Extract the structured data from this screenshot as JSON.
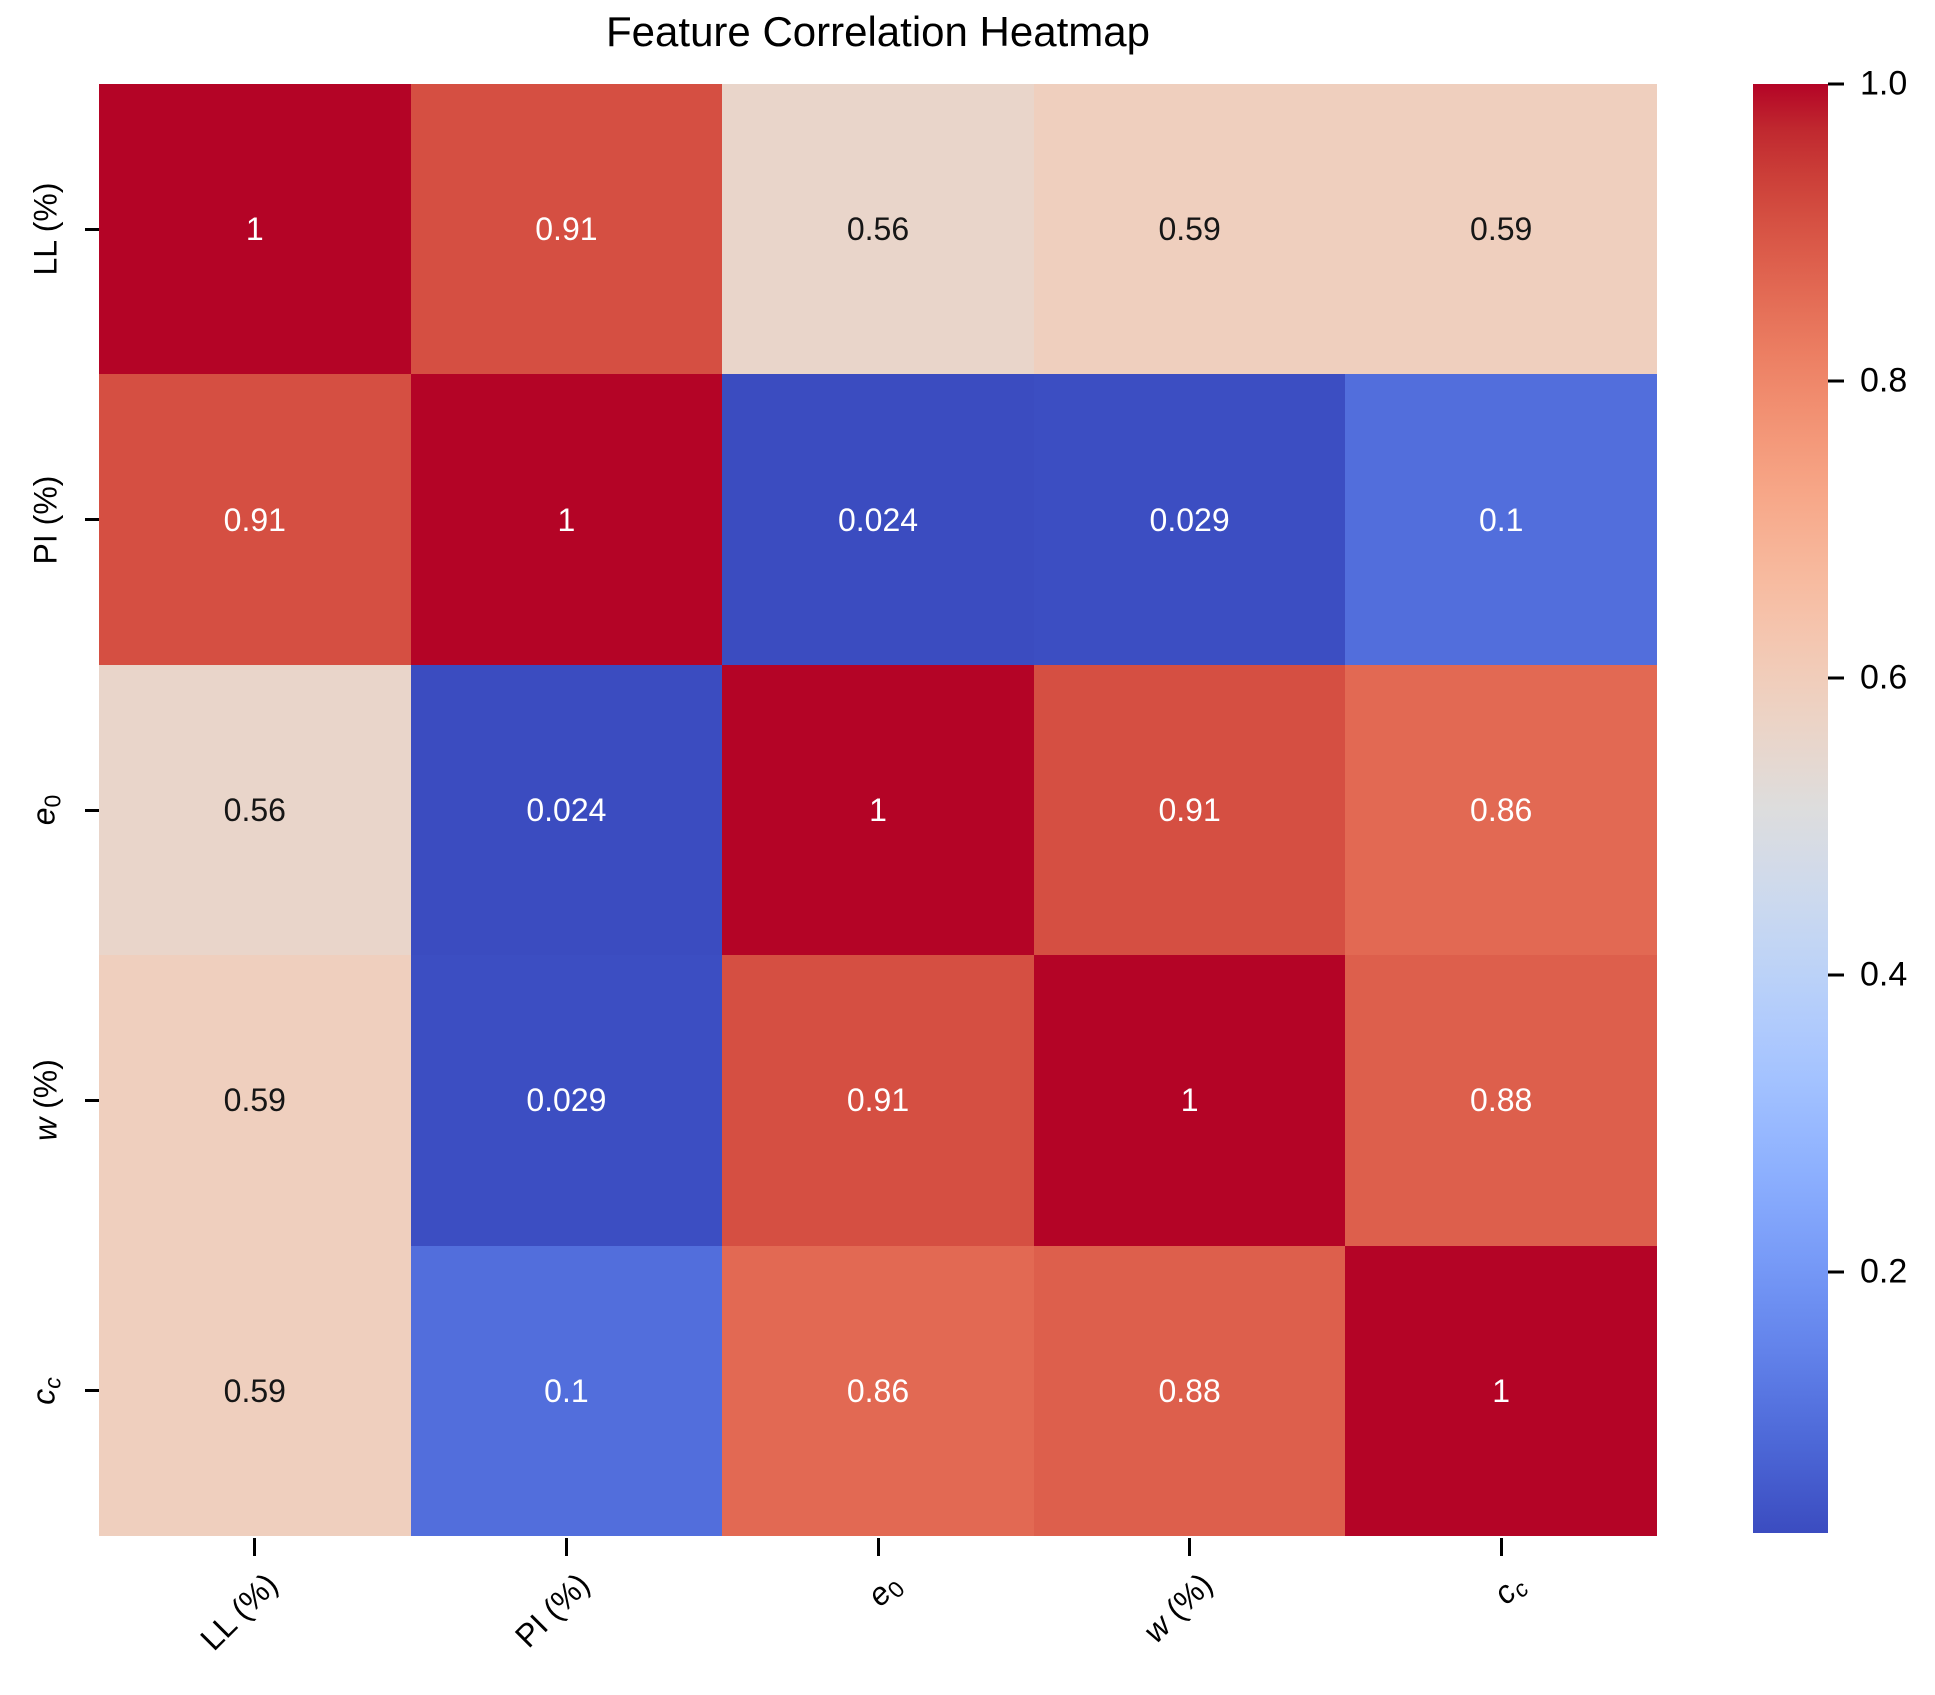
{
  "title": "Feature Correlation Heatmap",
  "chart_data": {
    "type": "heatmap",
    "axis_labels": [
      [
        {
          "text": "LL (%)"
        }
      ],
      [
        {
          "text": "PI (%)"
        }
      ],
      [
        {
          "text": "e",
          "italic": true
        },
        {
          "text": "0",
          "sub": true
        }
      ],
      [
        {
          "text": "w",
          "italic": true
        },
        {
          "text": " (%)"
        }
      ],
      [
        {
          "text": "c",
          "italic": true
        },
        {
          "text": "c",
          "sub": true,
          "italic": true
        }
      ]
    ],
    "label_names": [
      "LL (%)",
      "PI (%)",
      "e0",
      "w (%)",
      "cc"
    ],
    "values": [
      [
        1,
        0.91,
        0.56,
        0.59,
        0.59
      ],
      [
        0.91,
        1,
        0.024,
        0.029,
        0.1
      ],
      [
        0.56,
        0.024,
        1,
        0.91,
        0.86
      ],
      [
        0.59,
        0.029,
        0.91,
        1,
        0.88
      ],
      [
        0.59,
        0.1,
        0.86,
        0.88,
        1
      ]
    ],
    "annotations": [
      [
        "1",
        "0.91",
        "0.56",
        "0.59",
        "0.59"
      ],
      [
        "0.91",
        "1",
        "0.024",
        "0.029",
        "0.1"
      ],
      [
        "0.56",
        "0.024",
        "1",
        "0.91",
        "0.86"
      ],
      [
        "0.59",
        "0.029",
        "0.91",
        "1",
        "0.88"
      ],
      [
        "0.59",
        "0.1",
        "0.86",
        "0.88",
        "1"
      ]
    ],
    "colormap": "coolwarm",
    "vmin": 0.024,
    "vmax": 1.0,
    "colorbar_ticks": [
      {
        "label": "1.0",
        "value": 1.0
      },
      {
        "label": "0.8",
        "value": 0.8
      },
      {
        "label": "0.6",
        "value": 0.6
      },
      {
        "label": "0.4",
        "value": 0.4
      },
      {
        "label": "0.2",
        "value": 0.2
      }
    ],
    "colormap_stops": [
      "#3b4cc0",
      "#445acc",
      "#4d68d7",
      "#5775e1",
      "#6282ea",
      "#6c8ef1",
      "#779af7",
      "#82a5fb",
      "#8db0fe",
      "#98b9ff",
      "#a3c2ff",
      "#aec9fd",
      "#b8d0f9",
      "#c2d5f4",
      "#ccd9ee",
      "#d5dbe6",
      "#dddddd",
      "#e5d8d1",
      "#ecd3c5",
      "#f1ccb9",
      "#f5c4ad",
      "#f7bba0",
      "#f7b194",
      "#f7a687",
      "#f49a7b",
      "#f18d6f",
      "#ec7f63",
      "#e57058",
      "#de604d",
      "#d55042",
      "#cb3e38",
      "#c0282f",
      "#b40426"
    ],
    "colors": {
      "annot_dark": "#161616",
      "annot_light": "#ffffff",
      "tick": "#000000",
      "title": "#000000",
      "background": "#ffffff"
    },
    "legend_position": "right",
    "grid": false
  }
}
